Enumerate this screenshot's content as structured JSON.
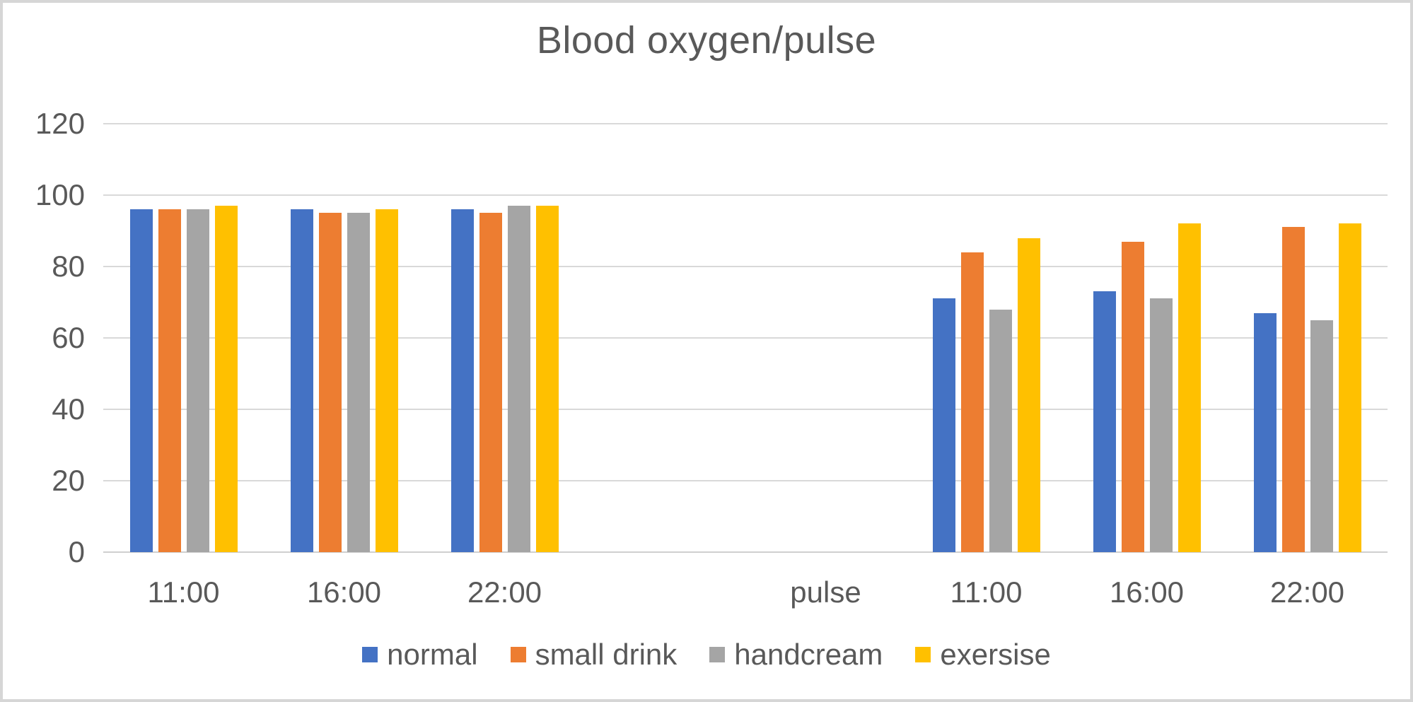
{
  "frame": {
    "background_color": "#ffffff",
    "border_color": "#d6d6d6"
  },
  "chart_data": {
    "type": "bar",
    "title": "Blood oxygen/pulse",
    "categories": [
      "11:00",
      "16:00",
      "22:00",
      "",
      "pulse",
      "11:00",
      "16:00",
      "22:00"
    ],
    "series": [
      {
        "name": "normal",
        "color": "#4472C4",
        "values": [
          96,
          96,
          96,
          null,
          null,
          71,
          73,
          67
        ]
      },
      {
        "name": "small drink",
        "color": "#ED7D31",
        "values": [
          96,
          95,
          95,
          null,
          null,
          84,
          87,
          91
        ]
      },
      {
        "name": "handcream",
        "color": "#A5A5A5",
        "values": [
          96,
          95,
          97,
          null,
          null,
          68,
          71,
          65
        ]
      },
      {
        "name": "exersise",
        "color": "#FFC000",
        "values": [
          97,
          96,
          97,
          null,
          null,
          88,
          92,
          92
        ]
      }
    ],
    "y_axis": {
      "min": 0,
      "max": 120,
      "tick_step": 20,
      "ticks": [
        0,
        20,
        40,
        60,
        80,
        100,
        120
      ]
    },
    "xlabel": "",
    "ylabel": "",
    "grid": true,
    "gridline_color": "#d9d9d9",
    "text_color": "#595959",
    "legend_position": "bottom"
  }
}
